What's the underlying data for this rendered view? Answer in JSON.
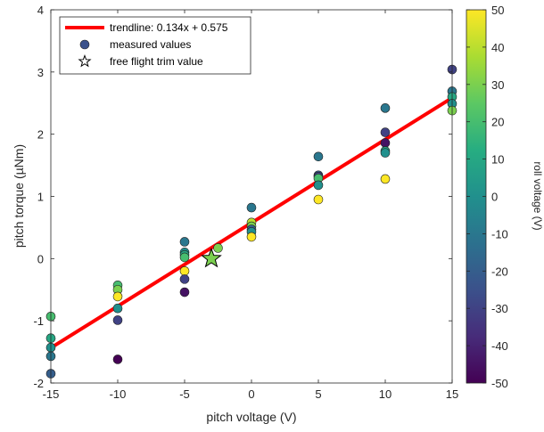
{
  "chart_data": {
    "type": "scatter",
    "xlabel": "pitch voltage (V)",
    "ylabel": "pitch torque (µNm)",
    "xlim": [
      -15,
      15
    ],
    "ylim": [
      -2,
      4
    ],
    "xticks": [
      -15,
      -10,
      -5,
      0,
      5,
      10,
      15
    ],
    "yticks": [
      -2,
      -1,
      0,
      1,
      2,
      3,
      4
    ],
    "grid": false,
    "legend_position": "top-left",
    "colorbar": {
      "label": "roll voltage (V)",
      "range": [
        -50,
        50
      ],
      "ticks": [
        -50,
        -40,
        -30,
        -20,
        -10,
        0,
        10,
        20,
        30,
        40,
        50
      ],
      "colormap": "viridis"
    },
    "legend": {
      "trendline": "trendline: 0.134x + 0.575",
      "measured": "measured values",
      "trim": "free flight trim value"
    },
    "trendline": {
      "slope": 0.134,
      "intercept": 0.575,
      "color": "#ff0000"
    },
    "trim_point": {
      "x": -3,
      "y": 0,
      "roll": 30
    },
    "points": [
      {
        "x": -15,
        "y": -0.93,
        "roll": 20
      },
      {
        "x": -15,
        "y": -1.28,
        "roll": 10
      },
      {
        "x": -15,
        "y": -1.43,
        "roll": 0
      },
      {
        "x": -15,
        "y": -1.57,
        "roll": -10
      },
      {
        "x": -15,
        "y": -1.85,
        "roll": -20
      },
      {
        "x": -10,
        "y": -0.43,
        "roll": 20
      },
      {
        "x": -10,
        "y": -0.5,
        "roll": 30
      },
      {
        "x": -10,
        "y": -0.61,
        "roll": 50
      },
      {
        "x": -10,
        "y": -0.8,
        "roll": 0
      },
      {
        "x": -10,
        "y": -0.99,
        "roll": -30
      },
      {
        "x": -10,
        "y": -1.62,
        "roll": -50
      },
      {
        "x": -5,
        "y": 0.27,
        "roll": -10
      },
      {
        "x": -5,
        "y": 0.1,
        "roll": 0
      },
      {
        "x": -5,
        "y": 0.06,
        "roll": 10
      },
      {
        "x": -5,
        "y": 0.02,
        "roll": 20
      },
      {
        "x": -5,
        "y": -0.2,
        "roll": 50
      },
      {
        "x": -5,
        "y": -0.33,
        "roll": -30
      },
      {
        "x": -5,
        "y": -0.54,
        "roll": -45
      },
      {
        "x": -2.5,
        "y": 0.17,
        "roll": 30
      },
      {
        "x": 0,
        "y": 0.82,
        "roll": -10
      },
      {
        "x": 0,
        "y": 0.58,
        "roll": 40
      },
      {
        "x": 0,
        "y": 0.52,
        "roll": 30
      },
      {
        "x": 0,
        "y": 0.47,
        "roll": -20
      },
      {
        "x": 0,
        "y": 0.43,
        "roll": 0
      },
      {
        "x": 0,
        "y": 0.35,
        "roll": 50
      },
      {
        "x": 5,
        "y": 1.64,
        "roll": -10
      },
      {
        "x": 5,
        "y": 1.34,
        "roll": -20
      },
      {
        "x": 5,
        "y": 1.32,
        "roll": -30
      },
      {
        "x": 5,
        "y": 1.29,
        "roll": 20
      },
      {
        "x": 5,
        "y": 1.18,
        "roll": 0
      },
      {
        "x": 5,
        "y": 0.95,
        "roll": 50
      },
      {
        "x": 10,
        "y": 2.42,
        "roll": -10
      },
      {
        "x": 10,
        "y": 2.03,
        "roll": -30
      },
      {
        "x": 10,
        "y": 1.86,
        "roll": -45
      },
      {
        "x": 10,
        "y": 1.73,
        "roll": 10
      },
      {
        "x": 10,
        "y": 1.7,
        "roll": 0
      },
      {
        "x": 10,
        "y": 1.28,
        "roll": 50
      },
      {
        "x": 15,
        "y": 3.04,
        "roll": -30
      },
      {
        "x": 15,
        "y": 2.69,
        "roll": -10
      },
      {
        "x": 15,
        "y": 2.6,
        "roll": 10
      },
      {
        "x": 15,
        "y": 2.49,
        "roll": 0
      },
      {
        "x": 15,
        "y": 2.38,
        "roll": 30
      }
    ]
  }
}
